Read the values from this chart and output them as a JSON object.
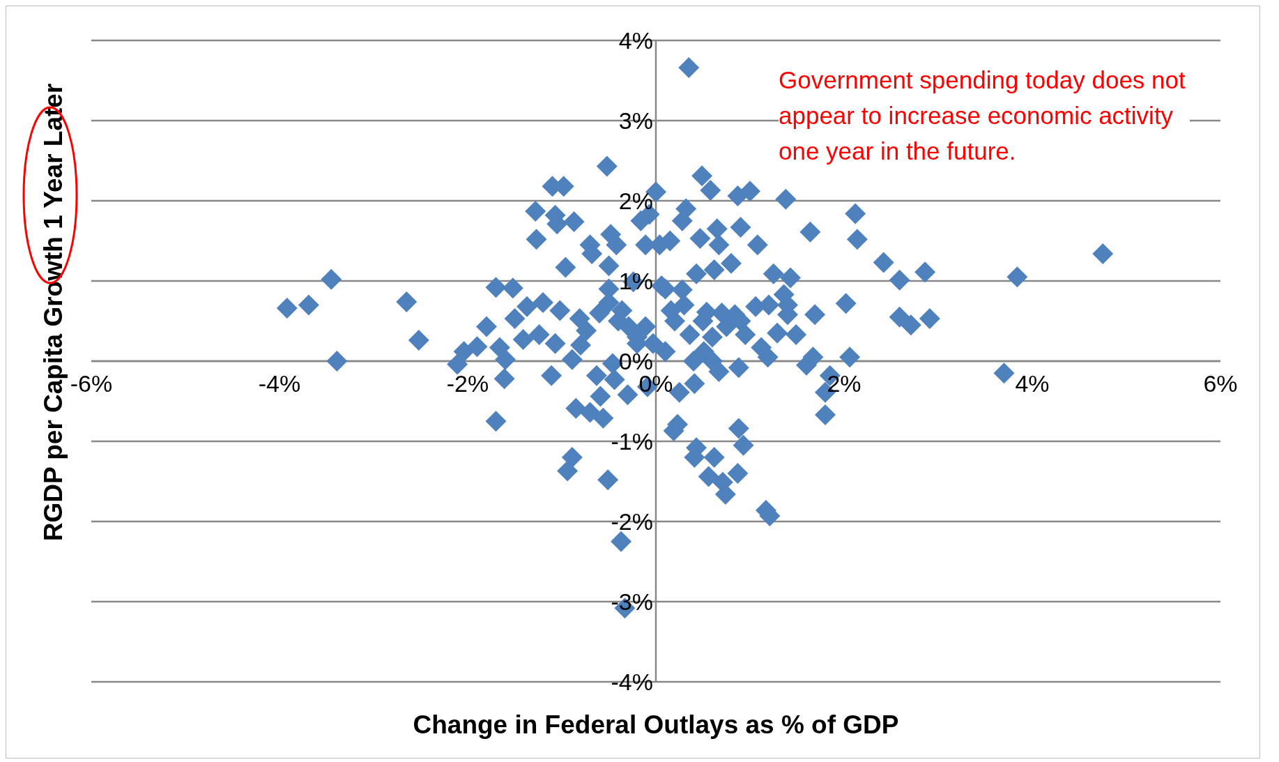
{
  "chart_data": {
    "type": "scatter",
    "xlabel": "Change in Federal Outlays as % of GDP",
    "ylabel": "RGDP per Capita Growth 1 Year Later",
    "annotations": [
      "Government spending today does not appear to increase economic activity one year in the future."
    ],
    "xlim": [
      -0.06,
      0.06
    ],
    "xticks": [
      {
        "value": -0.06,
        "label": "-6%"
      },
      {
        "value": -0.04,
        "label": "-4%"
      },
      {
        "value": -0.02,
        "label": "-2%"
      },
      {
        "value": 0,
        "label": "0%"
      },
      {
        "value": 0.02,
        "label": "2%"
      },
      {
        "value": 0.04,
        "label": "4%"
      },
      {
        "value": 0.06,
        "label": "6%"
      }
    ],
    "ylim": [
      -0.04,
      0.04
    ],
    "yticks": [
      {
        "value": -0.04,
        "label": "-4%"
      },
      {
        "value": -0.03,
        "label": "-3%"
      },
      {
        "value": -0.02,
        "label": "-2%"
      },
      {
        "value": -0.01,
        "label": "-1%"
      },
      {
        "value": 0,
        "label": "0%"
      },
      {
        "value": 0.01,
        "label": "1%"
      },
      {
        "value": 0.02,
        "label": "2%"
      },
      {
        "value": 0.03,
        "label": "3%"
      },
      {
        "value": 0.04,
        "label": "4%"
      }
    ],
    "grid": "y",
    "marker": "diamond",
    "legend": false,
    "series": [
      {
        "color": "#4f81bd",
        "x": [
          -0.0392,
          -0.0369,
          -0.0345,
          -0.0339,
          -0.0265,
          -0.0252,
          -0.0211,
          -0.0204,
          -0.019,
          -0.018,
          -0.017,
          -0.017,
          -0.0161,
          -0.0152,
          -0.016,
          -0.0166,
          -0.015,
          -0.0141,
          -0.0137,
          -0.0128,
          -0.0127,
          -0.0124,
          -0.012,
          -0.0111,
          -0.011,
          -0.0107,
          -0.0105,
          -0.0098,
          -0.0096,
          -0.0107,
          -0.0102,
          -0.0094,
          -0.0089,
          -0.0087,
          -0.0089,
          -0.0085,
          -0.0081,
          -0.0074,
          -0.007,
          -0.0068,
          -0.007,
          -0.0063,
          -0.0059,
          -0.0056,
          -0.0052,
          -0.0051,
          -0.0048,
          -0.005,
          -0.005,
          -0.0046,
          -0.0044,
          -0.0042,
          -0.0037,
          -0.0036,
          -0.003,
          -0.0033,
          -0.0029,
          -0.0024,
          -0.002,
          -0.0016,
          -0.0011,
          -0.0011,
          -0.0009,
          -0.0007,
          -0.0003,
          0.0,
          0.0004,
          0.0006,
          0.001,
          0.0015,
          0.0016,
          0.0019,
          0.0023,
          0.0025,
          0.0028,
          0.0028,
          0.0032,
          0.0035,
          0.0036,
          0.0041,
          0.0043,
          0.0043,
          0.0041,
          0.0047,
          0.0049,
          0.0051,
          0.0054,
          0.0056,
          0.0058,
          0.0062,
          0.0062,
          0.0065,
          0.0067,
          0.0067,
          0.0071,
          0.0074,
          0.0075,
          0.008,
          0.0084,
          0.0087,
          0.0088,
          0.0087,
          0.009,
          0.0088,
          0.0093,
          0.0095,
          0.01,
          0.0106,
          0.0108,
          0.0112,
          0.0117,
          0.0119,
          0.0121,
          0.0125,
          0.0129,
          0.0136,
          0.0138,
          0.014,
          0.0143,
          0.0149,
          0.016,
          0.0164,
          0.0169,
          0.0167,
          0.018,
          0.018,
          0.0185,
          0.0202,
          0.0206,
          0.0212,
          0.0214,
          0.0242,
          0.0259,
          0.0259,
          0.0271,
          0.0286,
          0.0291,
          0.037,
          0.0384,
          0.0475,
          -0.006,
          -0.004,
          -0.002,
          0.002,
          0.003,
          0.005,
          0.006,
          0.007,
          0.004,
          0.006,
          -0.008,
          -0.005,
          0.001,
          0.009,
          0.012,
          0.014
        ],
        "values": [
          0.0066,
          0.007,
          0.0102,
          0.0,
          0.0074,
          0.0026,
          -0.0004,
          0.0012,
          0.0018,
          0.0043,
          0.0092,
          -0.0075,
          -0.0022,
          0.0091,
          0.0002,
          0.0017,
          0.0053,
          0.0027,
          0.0068,
          0.0187,
          0.0152,
          0.0033,
          0.0073,
          -0.0018,
          0.0218,
          0.0182,
          0.0171,
          0.0218,
          0.0117,
          0.0022,
          0.0063,
          -0.0137,
          -0.012,
          0.0174,
          0.0002,
          -0.0059,
          0.0053,
          0.0038,
          0.0145,
          0.0134,
          -0.0064,
          -0.0018,
          -0.0044,
          -0.0071,
          0.0243,
          -0.0148,
          0.0158,
          0.0119,
          0.0073,
          -0.0003,
          -0.0023,
          0.0145,
          -0.0225,
          0.0063,
          -0.0042,
          -0.0308,
          0.0043,
          0.0099,
          0.0022,
          0.0175,
          0.0145,
          0.0043,
          -0.0032,
          0.0183,
          0.0022,
          0.0211,
          0.0145,
          0.0094,
          0.0012,
          0.015,
          0.0063,
          -0.0087,
          -0.0079,
          -0.0039,
          0.0089,
          0.0175,
          0.019,
          0.0366,
          0.0033,
          -0.012,
          -0.0108,
          0.0109,
          -0.0028,
          0.0153,
          0.0231,
          0.0012,
          0.0061,
          -0.0144,
          0.0213,
          -0.012,
          0.0114,
          0.0165,
          0.0145,
          -0.0013,
          -0.0151,
          -0.0166,
          0.0043,
          0.0122,
          0.0058,
          -0.014,
          -0.0008,
          0.0206,
          0.0167,
          -0.0084,
          -0.0105,
          0.0033,
          0.0212,
          0.0068,
          0.0145,
          0.0017,
          -0.0186,
          0.0005,
          -0.0193,
          0.0109,
          0.0035,
          0.0083,
          0.0202,
          0.0058,
          0.0104,
          0.0033,
          -0.0005,
          0.0161,
          0.0058,
          0.0005,
          -0.0039,
          -0.0067,
          -0.0018,
          0.0072,
          0.0005,
          0.0184,
          0.0152,
          0.0123,
          0.0101,
          0.0055,
          0.0045,
          0.0111,
          0.0053,
          -0.0015,
          0.0105,
          0.0134,
          0.006,
          0.005,
          0.003,
          0.005,
          0.007,
          0.005,
          0.003,
          0.006,
          0.0,
          0.0,
          0.002,
          0.009,
          0.009,
          0.005,
          0.007,
          0.007
        ]
      }
    ]
  }
}
